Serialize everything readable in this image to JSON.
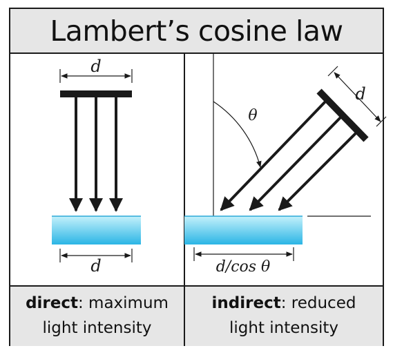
{
  "title": "Lambert’s cosine law",
  "left_panel": {
    "beam_label": "d",
    "surface_label": "d",
    "caption_bold": "direct",
    "caption_rest": ": maximum",
    "caption_line2": "light intensity"
  },
  "right_panel": {
    "beam_label": "d",
    "angle_label": "θ",
    "surface_label": "d/cos θ",
    "caption_bold": "indirect",
    "caption_rest": ": reduced",
    "caption_line2": "light intensity"
  },
  "colors": {
    "surface_top": "#bff0fb",
    "surface_bottom": "#29b6e6",
    "ink": "#1a1a1a",
    "panel_gray": "#e6e6e6"
  }
}
